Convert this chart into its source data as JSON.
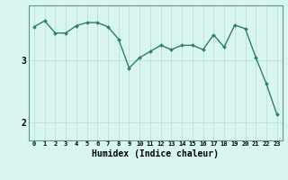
{
  "x": [
    0,
    1,
    2,
    3,
    4,
    5,
    6,
    7,
    8,
    9,
    10,
    11,
    12,
    13,
    14,
    15,
    16,
    17,
    18,
    19,
    20,
    21,
    22,
    23
  ],
  "y": [
    3.55,
    3.65,
    3.45,
    3.45,
    3.57,
    3.62,
    3.62,
    3.55,
    3.35,
    2.88,
    3.05,
    3.15,
    3.25,
    3.18,
    3.25,
    3.25,
    3.18,
    3.42,
    3.22,
    3.58,
    3.52,
    3.05,
    2.62,
    2.12
  ],
  "line_color": "#2e7d6e",
  "marker": "D",
  "markersize": 2.0,
  "linewidth": 1.0,
  "background_color": "#d8f5f0",
  "grid_color": "#c0dcd8",
  "xlabel": "Humidex (Indice chaleur)",
  "xlabel_fontsize": 7,
  "yticks": [
    2,
    3
  ],
  "ylim": [
    1.7,
    3.9
  ],
  "xlim": [
    -0.5,
    23.5
  ],
  "xtick_fontsize": 5,
  "ytick_fontsize": 7,
  "title": ""
}
